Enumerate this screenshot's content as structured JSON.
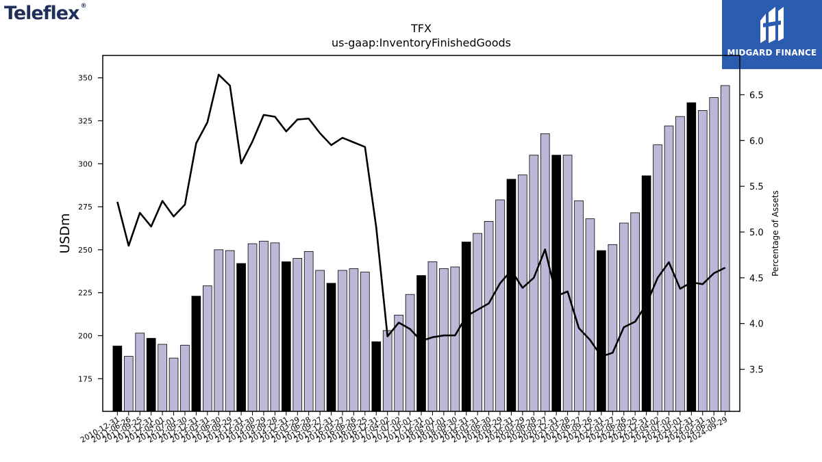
{
  "logos": {
    "left": "Teleflex",
    "left_mark": "®",
    "right": "MIDGARD FINANCE"
  },
  "chart_data": {
    "type": "bar",
    "title": "TFX",
    "subtitle": "us-gaap:InventoryFinishedGoods",
    "ylabel": "USDm",
    "y2label": "Percentage of Assets",
    "ylim": [
      156,
      363
    ],
    "y2lim": [
      3.04,
      6.93
    ],
    "yticks": [
      175,
      200,
      225,
      250,
      275,
      300,
      325,
      350
    ],
    "y2ticks": [
      3.5,
      4.0,
      4.5,
      5.0,
      5.5,
      6.0,
      6.5
    ],
    "ytick_labels": [
      "175",
      "200",
      "225",
      "250",
      "275",
      "300",
      "325",
      "350"
    ],
    "y2tick_labels": [
      "3.5",
      "4.0",
      "4.5",
      "5.0",
      "5.5",
      "6.0",
      "6.5"
    ],
    "categories": [
      "2010-12-31",
      "2011-06-26",
      "2011-09-25",
      "2011-12-31",
      "2012-04-01",
      "2012-07-01",
      "2012-09-30",
      "2012-12-31",
      "2013-03-31",
      "2013-06-30",
      "2013-09-29",
      "2013-12-31",
      "2014-03-30",
      "2014-06-29",
      "2014-09-28",
      "2014-12-31",
      "2015-03-29",
      "2015-06-28",
      "2015-09-27",
      "2015-12-31",
      "2016-03-27",
      "2016-06-26",
      "2016-09-25",
      "2016-12-31",
      "2017-04-02",
      "2017-07-02",
      "2017-10-01",
      "2017-12-31",
      "2018-04-01",
      "2018-07-01",
      "2018-09-30",
      "2018-12-31",
      "2019-03-31",
      "2019-06-30",
      "2019-09-29",
      "2019-12-31",
      "2020-03-29",
      "2020-06-28",
      "2020-09-27",
      "2020-12-31",
      "2021-03-28",
      "2021-06-27",
      "2021-09-26",
      "2021-12-31",
      "2022-03-27",
      "2022-06-26",
      "2022-09-25",
      "2022-12-31",
      "2023-04-02",
      "2023-07-02",
      "2023-10-01",
      "2023-12-31",
      "2024-03-31",
      "2024-06-30",
      "2024-09-29"
    ],
    "series": [
      {
        "values": [
          194,
          188,
          201.5,
          198.5,
          195,
          187,
          194.5,
          223,
          229,
          250,
          249.5,
          242,
          253.5,
          255,
          254,
          243,
          245,
          249,
          238,
          230.5,
          238,
          239,
          237,
          196.5,
          203,
          212,
          224,
          235,
          243,
          239,
          240,
          254.5,
          259.5,
          266.5,
          279,
          291,
          293.5,
          305,
          317.5,
          305,
          305,
          278.5,
          268,
          249.5,
          253,
          265.5,
          271.5,
          293,
          311,
          322,
          327.5,
          335.5,
          331,
          338.5,
          345.5
        ],
        "colors": [
          "#000000",
          "#bcb9d8",
          "#bcb9d8",
          "#000000",
          "#bcb9d8",
          "#bcb9d8",
          "#bcb9d8",
          "#000000",
          "#bcb9d8",
          "#bcb9d8",
          "#bcb9d8",
          "#000000",
          "#bcb9d8",
          "#bcb9d8",
          "#bcb9d8",
          "#000000",
          "#bcb9d8",
          "#bcb9d8",
          "#bcb9d8",
          "#000000",
          "#bcb9d8",
          "#bcb9d8",
          "#bcb9d8",
          "#000000",
          "#bcb9d8",
          "#bcb9d8",
          "#bcb9d8",
          "#000000",
          "#bcb9d8",
          "#bcb9d8",
          "#bcb9d8",
          "#000000",
          "#bcb9d8",
          "#bcb9d8",
          "#bcb9d8",
          "#000000",
          "#bcb9d8",
          "#bcb9d8",
          "#bcb9d8",
          "#000000",
          "#bcb9d8",
          "#bcb9d8",
          "#bcb9d8",
          "#000000",
          "#bcb9d8",
          "#bcb9d8",
          "#bcb9d8",
          "#000000",
          "#bcb9d8",
          "#bcb9d8",
          "#bcb9d8",
          "#000000",
          "#bcb9d8",
          "#bcb9d8",
          "#bcb9d8"
        ]
      },
      {
        "type": "line",
        "axis": "right",
        "color": "#000000",
        "values": [
          5.33,
          4.85,
          5.21,
          5.06,
          5.34,
          5.17,
          5.3,
          5.97,
          6.2,
          6.72,
          6.6,
          5.75,
          5.99,
          6.28,
          6.26,
          6.1,
          6.23,
          6.24,
          6.08,
          5.95,
          6.03,
          5.98,
          5.93,
          5.05,
          3.86,
          4.01,
          3.94,
          3.81,
          3.85,
          3.87,
          3.87,
          4.08,
          4.15,
          4.22,
          4.44,
          4.58,
          4.39,
          4.5,
          4.81,
          4.3,
          4.35,
          3.95,
          3.82,
          3.64,
          3.68,
          3.96,
          4.02,
          4.21,
          4.5,
          4.67,
          4.38,
          4.45,
          4.43,
          4.55,
          4.61
        ]
      }
    ]
  }
}
